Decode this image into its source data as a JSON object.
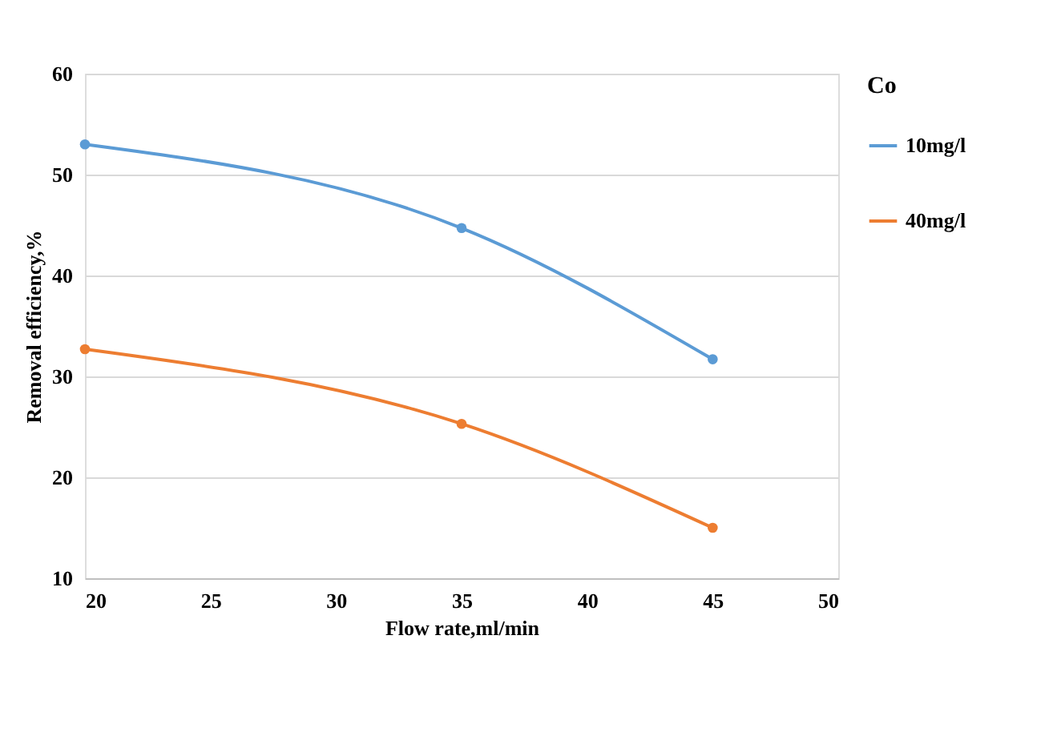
{
  "chart_data": {
    "type": "line",
    "xlabel": "Flow rate,ml/min",
    "ylabel": "Removal efficiency,%",
    "legend_title": "Co",
    "x": [
      20,
      35,
      45
    ],
    "series": [
      {
        "name": "10mg/l",
        "color": "#5b9bd5",
        "values": [
          53,
          44.7,
          31.7
        ]
      },
      {
        "name": "40mg/l",
        "color": "#ed7d31",
        "values": [
          32.7,
          25.3,
          15
        ]
      }
    ],
    "xlim": [
      20,
      50
    ],
    "xticks": [
      20,
      25,
      30,
      35,
      40,
      45,
      50
    ],
    "ylim": [
      10,
      60
    ],
    "yticks": [
      10,
      20,
      30,
      40,
      50,
      60
    ],
    "grid": "y",
    "legend": "right",
    "marker": "circle",
    "line_style": "solid"
  }
}
